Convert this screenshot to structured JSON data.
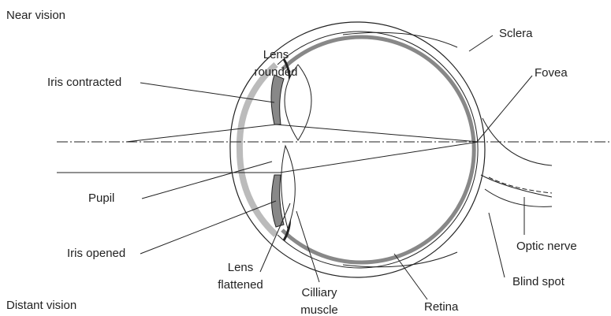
{
  "sections": {
    "top": "Near vision",
    "bottom": "Distant vision"
  },
  "labels": [
    {
      "lines": [
        "Lens",
        "rounded"
      ]
    },
    {
      "lines": [
        "Iris contracted"
      ]
    },
    {
      "lines": [
        "Sclera"
      ]
    },
    {
      "lines": [
        "Fovea"
      ]
    },
    {
      "lines": [
        "Pupil"
      ]
    },
    {
      "lines": [
        "Iris opened"
      ]
    },
    {
      "lines": [
        "Lens",
        "flattened"
      ]
    },
    {
      "lines": [
        "Cilliary",
        "muscle"
      ]
    },
    {
      "lines": [
        "Optic nerve"
      ]
    },
    {
      "lines": [
        "Blind spot"
      ]
    },
    {
      "lines": [
        "Retina"
      ]
    }
  ]
}
